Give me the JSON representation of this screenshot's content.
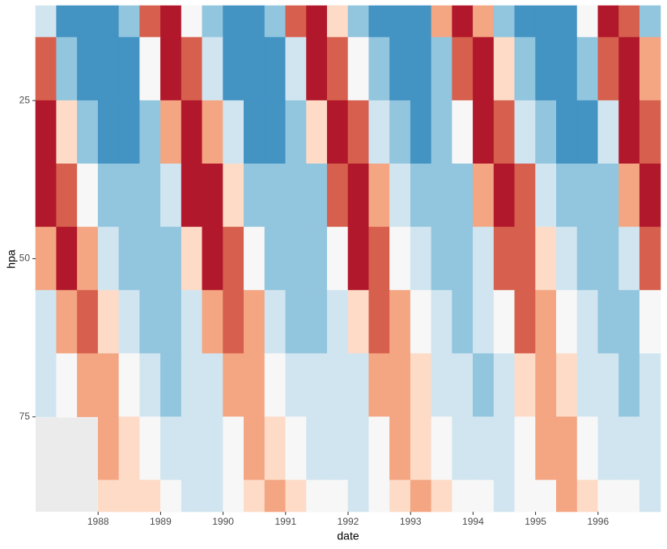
{
  "chart_data": {
    "type": "contour",
    "x_label": "date",
    "y_label": "hpa",
    "xlim": [
      1987,
      1997
    ],
    "ylim": [
      10,
      90
    ],
    "y_reversed": true,
    "xticks": [
      1988,
      1989,
      1990,
      1991,
      1992,
      1993,
      1994,
      1995,
      1996
    ],
    "yticks": [
      25,
      50,
      75
    ],
    "levels": [
      -40,
      -20,
      -10,
      -4,
      0,
      3,
      8,
      15,
      40
    ],
    "colors": [
      "#4393c3",
      "#92c5de",
      "#d1e5f0",
      "#f7f7f7",
      "#fddbc7",
      "#f4a582",
      "#d6604d",
      "#b2182b"
    ],
    "panel_color": "#ebebeb",
    "x": [
      1987.167,
      1987.5,
      1987.833,
      1988.167,
      1988.5,
      1988.833,
      1989.167,
      1989.5,
      1989.833,
      1990.167,
      1990.5,
      1990.833,
      1991.167,
      1991.5,
      1991.833,
      1992.167,
      1992.5,
      1992.833,
      1993.167,
      1993.5,
      1993.833,
      1994.167,
      1994.5,
      1994.833,
      1995.167,
      1995.5,
      1995.833,
      1996.167,
      1996.5,
      1996.833
    ],
    "y": [
      10,
      20,
      30,
      40,
      50,
      60,
      70,
      80,
      90
    ],
    "z": [
      [
        -7,
        -21,
        -29,
        -28,
        -13,
        14,
        15,
        -3,
        -19,
        -28,
        -28,
        -19,
        9,
        17,
        2,
        -16,
        -28,
        -29,
        -22,
        3,
        18,
        6,
        -13,
        -25,
        -30,
        -24,
        -2,
        19,
        9,
        -11
      ],
      [
        8,
        -12,
        -24,
        -29,
        -23,
        -3,
        20,
        11,
        -9,
        -22,
        -28,
        -25,
        -9,
        19,
        14,
        -4,
        -20,
        -28,
        -27,
        -14,
        14,
        17,
        0,
        -17,
        -27,
        -28,
        -19,
        8,
        18,
        4
      ],
      [
        17,
        2,
        -13,
        -22,
        -23,
        -16,
        7,
        18,
        6,
        -10,
        -21,
        -23,
        -18,
        2,
        19,
        9,
        -8,
        -19,
        -24,
        -20,
        -2,
        20,
        12,
        -5,
        -17,
        -23,
        -21,
        -7,
        17,
        14
      ],
      [
        20,
        13,
        -2,
        -13,
        -19,
        -18,
        -6,
        16,
        16,
        2,
        -11,
        -19,
        -19,
        -11,
        12,
        17,
        5,
        -9,
        -18,
        -19,
        -13,
        7,
        18,
        8,
        -7,
        -17,
        -20,
        -15,
        3,
        19
      ],
      [
        5,
        15,
        7,
        -5,
        -13,
        -16,
        -12,
        1,
        15,
        9,
        -3,
        -11,
        -16,
        -14,
        -3,
        15,
        11,
        -1,
        -10,
        -15,
        -15,
        -6,
        12,
        13,
        2,
        -9,
        -15,
        -15,
        -10,
        8
      ],
      [
        -6,
        7,
        9,
        1,
        -7,
        -12,
        -12,
        -8,
        4,
        10,
        3,
        -6,
        -11,
        -13,
        -9,
        2,
        10,
        5,
        -4,
        -10,
        -13,
        -10,
        -1,
        11,
        6,
        -3,
        -9,
        -13,
        -11,
        -3
      ],
      [
        -9,
        -3,
        7,
        4,
        -3,
        -8,
        -11,
        -10,
        -5,
        5,
        5,
        -1,
        -7,
        -10,
        -10,
        -7,
        3,
        6,
        0,
        -6,
        -10,
        -11,
        -8,
        1,
        6,
        2,
        -5,
        -10,
        -11,
        -9
      ],
      [
        null,
        null,
        null,
        4,
        1,
        -4,
        -7,
        -8,
        -7,
        -1,
        4,
        1,
        -3,
        -6,
        -8,
        -7,
        -3,
        4,
        2,
        -2,
        -6,
        -8,
        -7,
        -4,
        3,
        3,
        -1,
        -5,
        -8,
        -8
      ],
      [
        null,
        null,
        null,
        2,
        2,
        0,
        -3,
        -5,
        -5,
        -3,
        1,
        3,
        0,
        -3,
        -4,
        -5,
        -4,
        0,
        3,
        1,
        -2,
        -4,
        -5,
        -4,
        -1,
        3,
        1,
        -2,
        -4,
        -5
      ]
    ]
  }
}
